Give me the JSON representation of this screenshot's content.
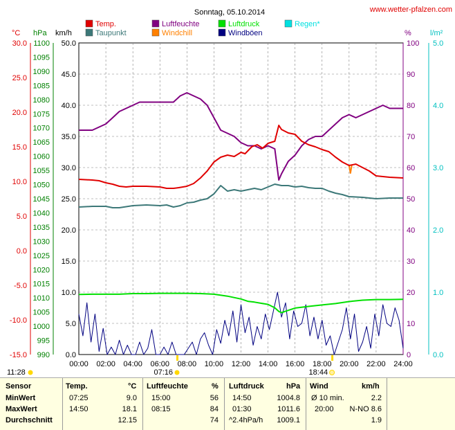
{
  "title": "Sonntag, 05.10.2014",
  "site": "www.wetter-pfalzen.com",
  "colors": {
    "temp": "#e00000",
    "taupunkt": "#3c7878",
    "luftfeuchte": "#800080",
    "windchill": "#ff8000",
    "luftdruck": "#00e000",
    "windboeen": "#000080",
    "regen": "#00e0e0",
    "left_temp_axis": "#e00000",
    "left_hpa_axis": "#008000",
    "right_regen_axis": "#00c0c0"
  },
  "legend": [
    {
      "label": "Temp.",
      "color": "#e00000"
    },
    {
      "label": "Luftfeuchte",
      "color": "#800080"
    },
    {
      "label": "Luftdruck",
      "color": "#00e000"
    },
    {
      "label": "Regen*",
      "color": "#00e0e0"
    },
    {
      "label": "Taupunkt",
      "color": "#3c7878"
    },
    {
      "label": "Windchill",
      "color": "#ff8000"
    },
    {
      "label": "Windböen",
      "color": "#000080"
    }
  ],
  "axis_units": {
    "temp": "°C",
    "hpa": "hPa",
    "kmh": "km/h",
    "pct": "%",
    "rain": "l/m²"
  },
  "axes": {
    "temp_ticks": [
      "30.0",
      "25.0",
      "20.0",
      "15.0",
      "10.0",
      "5.0",
      "0.0",
      "-5.0",
      "-10.0",
      "-15.0"
    ],
    "hpa_ticks": [
      "1100",
      "1095",
      "1090",
      "1085",
      "1080",
      "1075",
      "1070",
      "1065",
      "1060",
      "1055",
      "1050",
      "1045",
      "1040",
      "1035",
      "1030",
      "1025",
      "1020",
      "1015",
      "1010",
      "1005",
      "1000",
      "995",
      "990"
    ],
    "kmh_ticks": [
      "50.0",
      "45.0",
      "40.0",
      "35.0",
      "30.0",
      "25.0",
      "20.0",
      "15.0",
      "10.0",
      "5.0",
      "0.0"
    ],
    "pct_ticks": [
      "100",
      "90",
      "80",
      "70",
      "60",
      "50",
      "40",
      "30",
      "20",
      "10",
      "0"
    ],
    "rain_ticks": [
      "5.0",
      "4.0",
      "3.0",
      "2.0",
      "1.0",
      "0.0"
    ],
    "time_ticks": [
      "00:00",
      "02:00",
      "04:00",
      "06:00",
      "08:00",
      "10:00",
      "12:00",
      "14:00",
      "16:00",
      "18:00",
      "20:00",
      "22:00",
      "24:00"
    ]
  },
  "sun": {
    "moonset": "11:28",
    "sunrise": "07:16",
    "sunset": "18:44"
  },
  "chart_data": {
    "type": "line",
    "title": "Sonntag, 05.10.2014",
    "x_unit": "hour",
    "xlim": [
      0,
      24
    ],
    "temp_ylim": [
      -15,
      30
    ],
    "hpa_ylim": [
      990,
      1100
    ],
    "kmh_ylim": [
      0,
      50
    ],
    "pct_ylim": [
      0,
      100
    ],
    "rain_ylim": [
      0,
      5
    ],
    "grid": true,
    "series": [
      {
        "name": "Temp.",
        "axis": "temp",
        "x": [
          0,
          1,
          1.5,
          2,
          2.5,
          3,
          3.5,
          4,
          5,
          6,
          6.5,
          7,
          7.4,
          8,
          8.5,
          9,
          9.5,
          10,
          10.5,
          11,
          11.5,
          12,
          12.3,
          12.8,
          13.2,
          13.6,
          14,
          14.5,
          14.8,
          15,
          15.5,
          16,
          16.5,
          17,
          17.5,
          18,
          18.5,
          19,
          19.5,
          20,
          20.5,
          21,
          21.5,
          22,
          23,
          24
        ],
        "values": [
          10.3,
          10.2,
          10.1,
          9.8,
          9.6,
          9.3,
          9.2,
          9.3,
          9.3,
          9.2,
          9.0,
          9.0,
          9.1,
          9.3,
          9.7,
          10.5,
          11.5,
          12.8,
          13.5,
          13.8,
          13.6,
          14.2,
          14.0,
          15.0,
          15.3,
          14.8,
          15.5,
          15.8,
          18.1,
          17.5,
          17.0,
          16.8,
          15.8,
          15.3,
          15.0,
          14.6,
          14.3,
          13.5,
          12.8,
          12.3,
          12.5,
          12.0,
          11.5,
          10.8,
          10.6,
          10.5
        ]
      },
      {
        "name": "Taupunkt",
        "axis": "temp",
        "x": [
          0,
          1,
          2,
          2.5,
          3,
          4,
          5,
          6,
          6.5,
          7,
          7.5,
          8,
          8.5,
          9,
          9.5,
          10,
          10.5,
          11,
          11.5,
          12,
          12.5,
          13,
          13.5,
          14,
          14.5,
          15,
          15.5,
          16,
          16.5,
          17,
          17.5,
          18,
          18.5,
          19,
          19.5,
          20,
          21,
          22,
          23,
          24
        ],
        "values": [
          6.3,
          6.4,
          6.4,
          6.2,
          6.2,
          6.5,
          6.6,
          6.5,
          6.6,
          6.3,
          6.5,
          6.9,
          7.0,
          7.3,
          7.5,
          8.2,
          9.4,
          8.6,
          8.8,
          8.6,
          8.8,
          9.0,
          8.8,
          9.2,
          9.6,
          9.4,
          9.4,
          9.2,
          9.3,
          9.1,
          9.0,
          9.0,
          8.6,
          8.3,
          8.1,
          7.8,
          7.7,
          7.5,
          7.6,
          7.6
        ]
      },
      {
        "name": "Luftfeuchte",
        "axis": "pct",
        "x": [
          0,
          1,
          1.5,
          2,
          2.5,
          3,
          3.5,
          4,
          4.5,
          5,
          5.5,
          6,
          6.5,
          7,
          7.5,
          8,
          8.5,
          9,
          9.5,
          10,
          10.5,
          11,
          11.5,
          12,
          12.5,
          13,
          13.5,
          14,
          14.5,
          14.8,
          15,
          15.5,
          16,
          16.5,
          17,
          17.5,
          18,
          18.5,
          19,
          19.5,
          20,
          20.5,
          21,
          21.5,
          22,
          22.5,
          23,
          23.5,
          24
        ],
        "values": [
          72,
          72,
          73,
          74,
          76,
          78,
          79,
          80,
          81,
          81,
          81,
          81,
          81,
          81,
          83,
          84,
          83,
          82,
          80,
          76,
          72,
          71,
          70,
          68,
          67,
          67,
          66,
          67,
          66,
          56,
          58,
          62,
          64,
          67,
          69,
          70,
          70,
          72,
          74,
          76,
          77,
          76,
          77,
          78,
          79,
          80,
          79,
          79,
          79
        ]
      },
      {
        "name": "Windchill",
        "axis": "temp",
        "x": [
          20.0,
          20.1,
          20.2
        ],
        "values": [
          12.3,
          11.2,
          12.3
        ]
      },
      {
        "name": "Luftdruck",
        "axis": "hpa",
        "x": [
          0,
          1,
          2,
          3,
          4,
          5,
          6,
          7,
          8,
          9,
          10,
          11,
          12,
          12.5,
          13,
          13.5,
          14,
          14.5,
          14.8,
          15,
          15.5,
          16,
          17,
          18,
          19,
          20,
          21,
          22,
          23,
          24
        ],
        "values": [
          1011.2,
          1011.3,
          1011.3,
          1011.3,
          1011.5,
          1011.5,
          1011.6,
          1011.6,
          1011.6,
          1011.5,
          1011.3,
          1010.6,
          1009.6,
          1008.8,
          1008.5,
          1008.1,
          1007.7,
          1006.5,
          1005.2,
          1004.8,
          1005.6,
          1006.4,
          1007.0,
          1007.5,
          1008.0,
          1008.7,
          1009.2,
          1009.4,
          1009.4,
          1009.5
        ]
      },
      {
        "name": "Windböen",
        "axis": "kmh",
        "x": [
          0,
          0.3,
          0.6,
          0.9,
          1.2,
          1.5,
          1.8,
          2.1,
          2.4,
          2.7,
          3.0,
          3.3,
          3.6,
          3.9,
          4.2,
          4.5,
          4.8,
          5.1,
          5.4,
          5.7,
          6.0,
          6.3,
          6.6,
          6.9,
          7.2,
          7.5,
          7.8,
          8.1,
          8.4,
          8.7,
          9.0,
          9.3,
          9.6,
          9.9,
          10.2,
          10.5,
          10.8,
          11.1,
          11.4,
          11.7,
          12.0,
          12.3,
          12.6,
          12.9,
          13.2,
          13.5,
          13.8,
          14.1,
          14.4,
          14.7,
          15.0,
          15.3,
          15.6,
          15.9,
          16.2,
          16.5,
          16.8,
          17.1,
          17.4,
          17.7,
          18.0,
          18.3,
          18.6,
          18.9,
          19.2,
          19.5,
          19.8,
          20.1,
          20.4,
          20.7,
          21.0,
          21.3,
          21.6,
          21.9,
          22.2,
          22.5,
          22.8,
          23.1,
          23.4,
          23.7,
          24.0
        ],
        "values": [
          6.5,
          3.0,
          8.3,
          2.0,
          6.5,
          0.5,
          4.2,
          0.0,
          1.2,
          0.0,
          2.3,
          0.0,
          1.5,
          0.0,
          0.0,
          2.0,
          0.0,
          1.0,
          4.0,
          0.0,
          0.0,
          1.2,
          0.0,
          2.0,
          0.0,
          0.0,
          0.0,
          1.0,
          2.0,
          0.0,
          2.5,
          3.5,
          1.5,
          0.0,
          4.0,
          1.8,
          5.5,
          3.0,
          7.0,
          2.0,
          8.0,
          3.5,
          6.0,
          1.5,
          4.5,
          2.5,
          6.5,
          4.0,
          7.0,
          10.0,
          6.0,
          8.3,
          2.5,
          7.0,
          4.5,
          5.0,
          8.0,
          3.0,
          6.0,
          2.5,
          5.5,
          1.5,
          3.0,
          0.0,
          2.0,
          4.0,
          7.5,
          2.5,
          6.5,
          0.5,
          2.0,
          4.5,
          1.0,
          6.5,
          3.0,
          8.0,
          5.0,
          4.5,
          7.5,
          5.5,
          1.0
        ]
      }
    ]
  },
  "stats": {
    "header": {
      "sensor": "Sensor",
      "temp": "Temp.",
      "temp_unit": "°C",
      "feuchte": "Luftfeuchte",
      "feuchte_unit": "%",
      "druck": "Luftdruck",
      "druck_unit": "hPa",
      "wind": "Wind",
      "wind_unit": "km/h"
    },
    "rows": [
      {
        "label": "MinWert",
        "temp_time": "07:25",
        "temp_val": "9.0",
        "feuchte_time": "15:00",
        "feuchte_val": "56",
        "druck_time": "14:50",
        "druck_val": "1004.8",
        "wind_time": "Ø 10 min.",
        "wind_val": "2.2"
      },
      {
        "label": "MaxWert",
        "temp_time": "14:50",
        "temp_val": "18.1",
        "feuchte_time": "08:15",
        "feuchte_val": "84",
        "druck_time": "01:30",
        "druck_val": "1011.6",
        "wind_time": "20:00",
        "wind_val": "N-NO 8.6"
      },
      {
        "label": "Durchschnitt",
        "temp_time": "",
        "temp_val": "12.15",
        "feuchte_time": "",
        "feuchte_val": "74",
        "druck_time": "^2.4hPa/h",
        "druck_val": "1009.1",
        "wind_time": "",
        "wind_val": "1.9"
      }
    ]
  }
}
